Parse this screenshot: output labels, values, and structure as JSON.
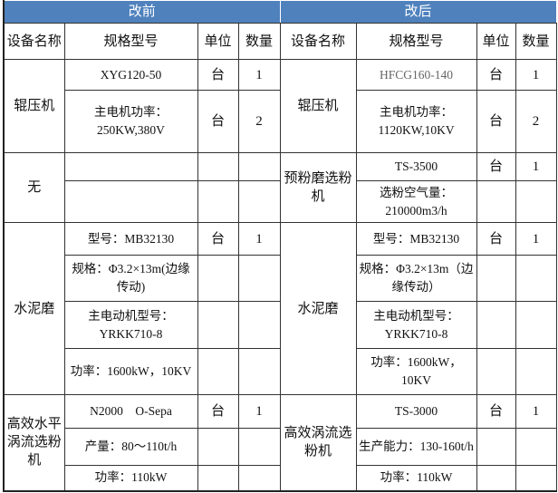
{
  "header": {
    "before": "改前",
    "after": "改后",
    "header_color": "#4f81bd"
  },
  "columns": {
    "before": [
      "设备名称",
      "规格型号",
      "单位",
      "数量"
    ],
    "after": [
      "设备名称",
      "规格型号",
      "单位",
      "数量"
    ]
  },
  "groups": [
    {
      "before": {
        "name": "辊压机",
        "rows": [
          {
            "spec": "XYG120-50",
            "unit": "台",
            "qty": "1"
          },
          {
            "spec": "主电机功率：250KW,380V",
            "unit": "台",
            "qty": "2"
          }
        ]
      },
      "after": {
        "name": "辊压机",
        "rows": [
          {
            "spec": "HFCG160-140",
            "unit": "台",
            "qty": "1"
          },
          {
            "spec": "主电机功率：1120KW,10KV",
            "unit": "台",
            "qty": "2"
          }
        ]
      }
    },
    {
      "before": {
        "name": "无",
        "rows": [
          {
            "spec": "",
            "unit": "",
            "qty": ""
          },
          {
            "spec": "",
            "unit": "",
            "qty": ""
          }
        ]
      },
      "after": {
        "name": "预粉磨选粉机",
        "rows": [
          {
            "spec": "TS-3500",
            "unit": "台",
            "qty": "1"
          },
          {
            "spec": "选粉空气量：210000m3/h",
            "unit": "",
            "qty": ""
          }
        ]
      }
    },
    {
      "before": {
        "name": "水泥磨",
        "rows": [
          {
            "spec": "型号：MB32130",
            "unit": "台",
            "qty": "1"
          },
          {
            "spec": "规格：Φ3.2×13m(边缘传动)",
            "unit": "",
            "qty": ""
          },
          {
            "spec": "主电动机型号：YRKK710-8",
            "unit": "",
            "qty": ""
          },
          {
            "spec": "功率：1600kW，10KV",
            "unit": "",
            "qty": ""
          }
        ]
      },
      "after": {
        "name": "水泥磨",
        "rows": [
          {
            "spec": "型号：MB32130",
            "unit": "台",
            "qty": "1"
          },
          {
            "spec": "规格：Φ3.2×13m（边缘传动）",
            "unit": "",
            "qty": ""
          },
          {
            "spec": "主电动机型号：YRKK710-8",
            "unit": "",
            "qty": ""
          },
          {
            "spec": "功率：1600kW，10KV",
            "unit": "",
            "qty": ""
          }
        ]
      }
    },
    {
      "before": {
        "name": "高效水平涡流选粉机",
        "rows": [
          {
            "spec": "N2000　O-Sepa",
            "unit": "台",
            "qty": "1"
          },
          {
            "spec": "产量：80～110t/h",
            "unit": "",
            "qty": ""
          },
          {
            "spec": "功率：110kW",
            "unit": "",
            "qty": ""
          }
        ]
      },
      "after": {
        "name": "高效涡流选粉机",
        "rows": [
          {
            "spec": "TS-3000",
            "unit": "台",
            "qty": "1"
          },
          {
            "spec": "生产能力：130-160t/h",
            "unit": "",
            "qty": ""
          },
          {
            "spec": "功率：110kW",
            "unit": "",
            "qty": ""
          }
        ]
      }
    }
  ]
}
